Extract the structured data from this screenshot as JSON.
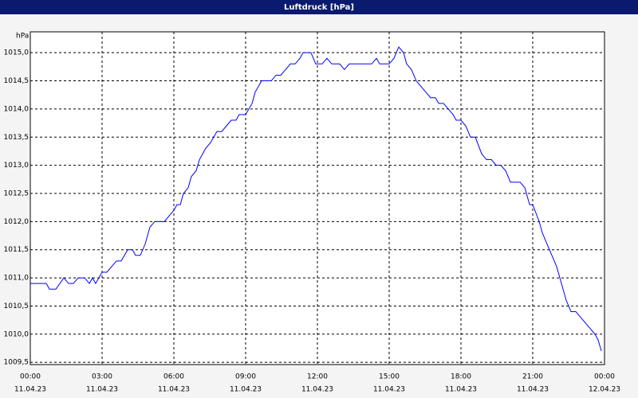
{
  "chart_data": {
    "type": "line",
    "title": "Luftdruck [hPa]",
    "y_unit": "hPa",
    "color": "#0000ff",
    "grid": true,
    "x": [
      0,
      0.67,
      0.8,
      1.07,
      1.4,
      1.6,
      1.8,
      2.0,
      2.27,
      2.47,
      2.6,
      2.73,
      3.0,
      3.2,
      3.6,
      3.8,
      4.07,
      4.27,
      4.4,
      4.6,
      4.8,
      5.0,
      5.2,
      5.6,
      5.8,
      6.0,
      6.13,
      6.27,
      6.4,
      6.6,
      6.73,
      6.93,
      7.07,
      7.33,
      7.53,
      7.8,
      8.0,
      8.2,
      8.4,
      8.6,
      8.73,
      9.0,
      9.27,
      9.4,
      9.67,
      10.07,
      10.27,
      10.47,
      10.67,
      10.87,
      11.07,
      11.27,
      11.4,
      11.73,
      11.93,
      12.2,
      12.4,
      12.6,
      12.93,
      13.13,
      13.33,
      14.27,
      14.47,
      14.6,
      15.0,
      15.2,
      15.4,
      15.6,
      15.73,
      15.93,
      16.13,
      16.33,
      16.53,
      16.73,
      16.93,
      17.07,
      17.27,
      17.47,
      17.67,
      17.8,
      18.0,
      18.2,
      18.4,
      18.6,
      18.87,
      19.07,
      19.27,
      19.47,
      19.67,
      19.87,
      20.07,
      20.47,
      20.67,
      20.87,
      21.0,
      21.27,
      21.4,
      21.6,
      21.8,
      22.0,
      22.2,
      22.4,
      22.6,
      22.8,
      23.0,
      23.4,
      23.6,
      23.73,
      23.87
    ],
    "values": [
      1010.9,
      1010.9,
      1010.8,
      1010.8,
      1011.0,
      1010.9,
      1010.9,
      1011.0,
      1011.0,
      1010.9,
      1011.0,
      1010.9,
      1011.1,
      1011.1,
      1011.3,
      1011.3,
      1011.5,
      1011.5,
      1011.4,
      1011.4,
      1011.6,
      1011.9,
      1012.0,
      1012.0,
      1012.1,
      1012.2,
      1012.3,
      1012.3,
      1012.5,
      1012.6,
      1012.8,
      1012.9,
      1013.1,
      1013.3,
      1013.4,
      1013.6,
      1013.6,
      1013.7,
      1013.8,
      1013.8,
      1013.9,
      1013.9,
      1014.1,
      1014.3,
      1014.5,
      1014.5,
      1014.6,
      1014.6,
      1014.7,
      1014.8,
      1014.8,
      1014.9,
      1015.0,
      1015.0,
      1014.8,
      1014.8,
      1014.9,
      1014.8,
      1014.8,
      1014.7,
      1014.8,
      1014.8,
      1014.9,
      1014.8,
      1014.8,
      1014.9,
      1015.1,
      1015.0,
      1014.8,
      1014.7,
      1014.5,
      1014.4,
      1014.3,
      1014.2,
      1014.2,
      1014.1,
      1014.1,
      1014.0,
      1013.9,
      1013.8,
      1013.8,
      1013.7,
      1013.5,
      1013.5,
      1013.2,
      1013.1,
      1013.1,
      1013.0,
      1013.0,
      1012.9,
      1012.7,
      1012.7,
      1012.6,
      1012.3,
      1012.3,
      1012.0,
      1011.8,
      1011.6,
      1011.4,
      1011.2,
      1010.9,
      1010.6,
      1010.4,
      1010.4,
      1010.3,
      1010.1,
      1010.0,
      1009.9,
      1009.7
    ],
    "xlim": [
      0,
      24
    ],
    "ylim": [
      1009.46,
      1015.37
    ],
    "xticks": [
      {
        "value": 0,
        "label": "00:00"
      },
      {
        "value": 3,
        "label": "03:00"
      },
      {
        "value": 6,
        "label": "06:00"
      },
      {
        "value": 9,
        "label": "09:00"
      },
      {
        "value": 12,
        "label": "12:00"
      },
      {
        "value": 15,
        "label": "15:00"
      },
      {
        "value": 18,
        "label": "18:00"
      },
      {
        "value": 21,
        "label": "21:00"
      },
      {
        "value": 24,
        "label": "00:00"
      }
    ],
    "xtick_dates": [
      "11.04.23",
      "11.04.23",
      "11.04.23",
      "11.04.23",
      "11.04.23",
      "11.04.23",
      "11.04.23",
      "11.04.23",
      "12.04.23"
    ],
    "yticks": [
      {
        "value": 1009.5,
        "label": "1009,5"
      },
      {
        "value": 1010,
        "label": "1010,0"
      },
      {
        "value": 1010.5,
        "label": "1010,5"
      },
      {
        "value": 1011,
        "label": "1011,0"
      },
      {
        "value": 1011.5,
        "label": "1011,5"
      },
      {
        "value": 1012,
        "label": "1012,0"
      },
      {
        "value": 1012.5,
        "label": "1012,5"
      },
      {
        "value": 1013,
        "label": "1013,0"
      },
      {
        "value": 1013.5,
        "label": "1013,5"
      },
      {
        "value": 1014,
        "label": "1014,0"
      },
      {
        "value": 1014.5,
        "label": "1014,5"
      },
      {
        "value": 1015,
        "label": "1015,0"
      }
    ]
  }
}
